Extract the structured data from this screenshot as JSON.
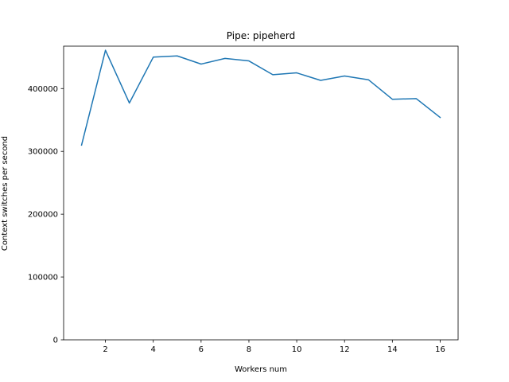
{
  "chart_data": {
    "type": "line",
    "title": "Pipe: pipeherd",
    "xlabel": "Workers num",
    "ylabel": "Context switches per second",
    "xlim": [
      0.25,
      16.75
    ],
    "ylim": [
      0,
      467500
    ],
    "xticks": [
      2,
      4,
      6,
      8,
      10,
      12,
      14,
      16
    ],
    "yticks": [
      0,
      100000,
      200000,
      300000,
      400000
    ],
    "grid": false,
    "line_color": "#1f77b4",
    "series": [
      {
        "x": [
          1,
          2,
          3,
          4,
          5,
          6,
          7,
          8,
          9,
          10,
          11,
          12,
          13,
          14,
          15,
          16
        ],
        "values": [
          310000,
          461000,
          377000,
          450000,
          452000,
          439000,
          448000,
          444000,
          422000,
          425000,
          413000,
          420000,
          414000,
          383000,
          384000,
          354000
        ]
      }
    ]
  }
}
